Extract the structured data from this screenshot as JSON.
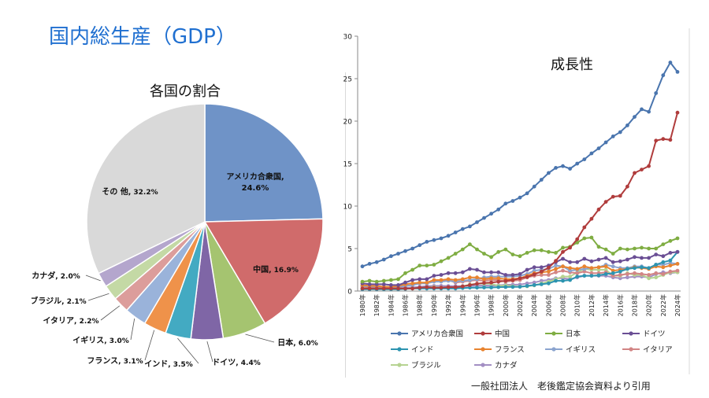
{
  "title": "国内総生産（GDP）",
  "source": "一般社団法人　老後鑑定協会資料より引用",
  "chart_data": [
    {
      "type": "pie",
      "title": "各国の割合",
      "slices": [
        {
          "label": "アメリカ合衆国",
          "value": 24.6,
          "value_label": "24.6%",
          "color": "#6f93c7"
        },
        {
          "label": "中国",
          "value": 16.9,
          "value_label": "16.9%",
          "color": "#d06b6b"
        },
        {
          "label": "日本",
          "value": 6.0,
          "value_label": "6.0%",
          "color": "#a5c470"
        },
        {
          "label": "ドイツ",
          "value": 4.4,
          "value_label": "4.4%",
          "color": "#7f66a6"
        },
        {
          "label": "インド",
          "value": 3.5,
          "value_label": "3.5%",
          "color": "#43aac2"
        },
        {
          "label": "フランス",
          "value": 3.1,
          "value_label": "3.1%",
          "color": "#ef924a"
        },
        {
          "label": "イギリス",
          "value": 3.0,
          "value_label": "3.0%",
          "color": "#9ab3da"
        },
        {
          "label": "イタリア",
          "value": 2.2,
          "value_label": "2.2%",
          "color": "#dc9d9b"
        },
        {
          "label": "ブラジル",
          "value": 2.1,
          "value_label": "2.1%",
          "color": "#c4d9a5"
        },
        {
          "label": "カナダ",
          "value": 2.0,
          "value_label": "2.0%",
          "color": "#b4a6cd"
        },
        {
          "label": "その 他",
          "value": 32.2,
          "value_label": "32.2%",
          "color": "#d9d9d9"
        }
      ]
    },
    {
      "type": "line",
      "title": "成長性",
      "ylim": [
        0,
        30
      ],
      "yticks": [
        0,
        5,
        10,
        15,
        20,
        25,
        30
      ],
      "x": [
        1980,
        1981,
        1982,
        1983,
        1984,
        1985,
        1986,
        1987,
        1988,
        1989,
        1990,
        1991,
        1992,
        1993,
        1994,
        1995,
        1996,
        1997,
        1998,
        1999,
        2000,
        2001,
        2002,
        2003,
        2004,
        2005,
        2006,
        2007,
        2008,
        2009,
        2010,
        2011,
        2012,
        2013,
        2014,
        2015,
        2016,
        2017,
        2018,
        2019,
        2020,
        2021,
        2022,
        2023,
        2024
      ],
      "xtick_labels": [
        "1980年",
        "1982年",
        "1984年",
        "1986年",
        "1988年",
        "1990年",
        "1992年",
        "1994年",
        "1996年",
        "1998年",
        "2000年",
        "2002年",
        "2004年",
        "2006年",
        "2008年",
        "2010年",
        "2012年",
        "2014年",
        "2016年",
        "2018年",
        "2020年",
        "2022年",
        "2024年"
      ],
      "series": [
        {
          "name": "アメリカ合衆国",
          "color": "#4a75ae",
          "values": [
            2.9,
            3.2,
            3.4,
            3.7,
            4.1,
            4.4,
            4.7,
            5.0,
            5.4,
            5.8,
            6.0,
            6.2,
            6.5,
            6.9,
            7.3,
            7.6,
            8.1,
            8.6,
            9.1,
            9.6,
            10.3,
            10.6,
            11.0,
            11.5,
            12.3,
            13.1,
            13.9,
            14.5,
            14.7,
            14.4,
            15.0,
            15.5,
            16.2,
            16.8,
            17.5,
            18.2,
            18.7,
            19.5,
            20.5,
            21.4,
            21.1,
            23.3,
            25.4,
            26.9,
            25.8
          ]
        },
        {
          "name": "中国",
          "color": "#b03c3c",
          "values": [
            0.3,
            0.3,
            0.3,
            0.3,
            0.3,
            0.3,
            0.3,
            0.3,
            0.4,
            0.45,
            0.4,
            0.4,
            0.45,
            0.45,
            0.55,
            0.7,
            0.85,
            0.95,
            1.0,
            1.1,
            1.2,
            1.3,
            1.5,
            1.65,
            1.95,
            2.3,
            2.75,
            3.55,
            4.6,
            5.1,
            6.1,
            7.5,
            8.5,
            9.6,
            10.5,
            11.1,
            11.2,
            12.3,
            13.9,
            14.3,
            14.7,
            17.7,
            17.9,
            17.8,
            21.0
          ]
        },
        {
          "name": "日本",
          "color": "#7fad42",
          "values": [
            1.1,
            1.2,
            1.1,
            1.2,
            1.3,
            1.4,
            2.1,
            2.5,
            3.0,
            3.0,
            3.1,
            3.5,
            3.9,
            4.4,
            4.9,
            5.5,
            4.9,
            4.4,
            4.0,
            4.6,
            4.9,
            4.3,
            4.1,
            4.5,
            4.8,
            4.8,
            4.6,
            4.5,
            5.1,
            5.2,
            5.7,
            6.2,
            6.3,
            5.2,
            4.9,
            4.4,
            5.0,
            4.9,
            5.0,
            5.1,
            5.0,
            5.0,
            5.5,
            5.9,
            6.2
          ]
        },
        {
          "name": "ドイツ",
          "color": "#6a4e94",
          "values": [
            0.9,
            0.8,
            0.8,
            0.8,
            0.7,
            0.7,
            1.0,
            1.3,
            1.4,
            1.4,
            1.8,
            1.9,
            2.1,
            2.1,
            2.2,
            2.6,
            2.5,
            2.2,
            2.2,
            2.2,
            1.9,
            1.9,
            2.0,
            2.5,
            2.8,
            2.8,
            3.0,
            3.4,
            3.8,
            3.4,
            3.4,
            3.8,
            3.5,
            3.7,
            3.9,
            3.4,
            3.5,
            3.7,
            4.0,
            3.9,
            3.9,
            4.3,
            4.1,
            4.5,
            4.6
          ]
        },
        {
          "name": "インド",
          "color": "#2d94b0",
          "values": [
            0.2,
            0.2,
            0.2,
            0.2,
            0.2,
            0.2,
            0.25,
            0.3,
            0.3,
            0.3,
            0.3,
            0.3,
            0.3,
            0.3,
            0.35,
            0.4,
            0.4,
            0.42,
            0.42,
            0.45,
            0.47,
            0.48,
            0.5,
            0.6,
            0.7,
            0.8,
            0.9,
            1.2,
            1.2,
            1.3,
            1.7,
            1.8,
            1.8,
            1.85,
            2.0,
            2.1,
            2.3,
            2.6,
            2.7,
            2.8,
            2.7,
            3.1,
            3.4,
            3.6,
            4.6
          ]
        },
        {
          "name": "フランス",
          "color": "#e8832f",
          "values": [
            0.7,
            0.6,
            0.6,
            0.5,
            0.5,
            0.6,
            0.8,
            0.9,
            1.0,
            1.0,
            1.3,
            1.3,
            1.4,
            1.3,
            1.4,
            1.6,
            1.6,
            1.4,
            1.5,
            1.5,
            1.4,
            1.4,
            1.5,
            1.8,
            2.1,
            2.2,
            2.3,
            2.6,
            2.9,
            2.7,
            2.6,
            2.9,
            2.7,
            2.8,
            2.9,
            2.4,
            2.5,
            2.6,
            2.8,
            2.7,
            2.6,
            2.9,
            2.8,
            3.0,
            3.2
          ]
        },
        {
          "name": "イギリス",
          "color": "#8ba4cf",
          "values": [
            0.6,
            0.55,
            0.5,
            0.5,
            0.5,
            0.5,
            0.6,
            0.7,
            0.9,
            0.9,
            1.1,
            1.1,
            1.2,
            1.1,
            1.2,
            1.3,
            1.4,
            1.6,
            1.7,
            1.7,
            1.7,
            1.7,
            1.8,
            2.0,
            2.4,
            2.5,
            2.6,
            3.0,
            2.9,
            2.4,
            2.5,
            2.6,
            2.7,
            2.8,
            3.1,
            2.9,
            2.7,
            2.7,
            2.9,
            2.9,
            2.7,
            3.1,
            3.1,
            3.3,
            3.2
          ]
        },
        {
          "name": "イタリア",
          "color": "#d28585",
          "values": [
            0.5,
            0.45,
            0.45,
            0.45,
            0.45,
            0.45,
            0.6,
            0.7,
            0.9,
            0.9,
            1.2,
            1.2,
            1.3,
            1.0,
            1.1,
            1.2,
            1.3,
            1.2,
            1.3,
            1.3,
            1.1,
            1.2,
            1.3,
            1.6,
            1.8,
            1.9,
            1.9,
            2.2,
            2.4,
            2.2,
            2.1,
            2.3,
            2.1,
            2.1,
            2.2,
            1.8,
            1.9,
            2.0,
            2.1,
            2.0,
            1.9,
            2.1,
            2.0,
            2.3,
            2.4
          ]
        },
        {
          "name": "ブラジル",
          "color": "#b6d391",
          "values": [
            0.24,
            0.26,
            0.28,
            0.2,
            0.2,
            0.22,
            0.27,
            0.3,
            0.33,
            0.43,
            0.46,
            0.41,
            0.39,
            0.43,
            0.56,
            0.77,
            0.85,
            0.88,
            0.86,
            0.6,
            0.66,
            0.56,
            0.51,
            0.56,
            0.67,
            0.89,
            1.1,
            1.4,
            1.7,
            1.7,
            2.2,
            2.6,
            2.5,
            2.5,
            2.5,
            1.8,
            1.8,
            2.1,
            1.9,
            1.9,
            1.5,
            1.6,
            1.9,
            2.2,
            2.2
          ]
        },
        {
          "name": "カナダ",
          "color": "#a38fc3",
          "values": [
            0.27,
            0.3,
            0.31,
            0.34,
            0.35,
            0.36,
            0.37,
            0.43,
            0.5,
            0.57,
            0.6,
            0.61,
            0.59,
            0.58,
            0.58,
            0.6,
            0.63,
            0.65,
            0.63,
            0.67,
            0.74,
            0.74,
            0.76,
            0.9,
            1.0,
            1.2,
            1.3,
            1.5,
            1.5,
            1.4,
            1.6,
            1.8,
            1.8,
            1.8,
            1.8,
            1.6,
            1.5,
            1.6,
            1.7,
            1.7,
            1.6,
            2.0,
            2.2,
            2.1,
            2.2
          ]
        }
      ]
    }
  ]
}
